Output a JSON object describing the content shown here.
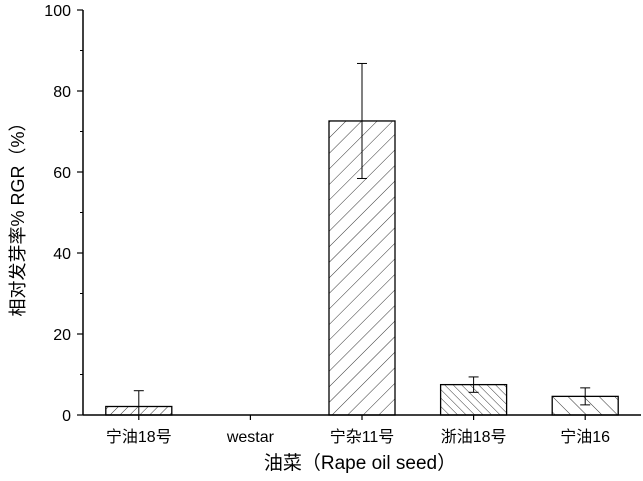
{
  "chart_data": {
    "type": "bar",
    "title": "",
    "xlabel": "油菜（Rape oil seed）",
    "ylabel": "相对发芽率% RGR（%）",
    "ylim": [
      0,
      100
    ],
    "yticks": [
      "0",
      "20",
      "40",
      "60",
      "80",
      "100"
    ],
    "grid": false,
    "categories": [
      "宁油18号",
      "westar",
      "宁杂11号",
      "浙油18号",
      "宁油16"
    ],
    "values": [
      2.1,
      0,
      72.6,
      7.5,
      4.6
    ],
    "errors": [
      3.9,
      0,
      14.2,
      1.9,
      2.1
    ],
    "hatches": [
      "fwd-dense",
      "none",
      "fwd-sparse",
      "back-dense",
      "back-sparse"
    ]
  }
}
